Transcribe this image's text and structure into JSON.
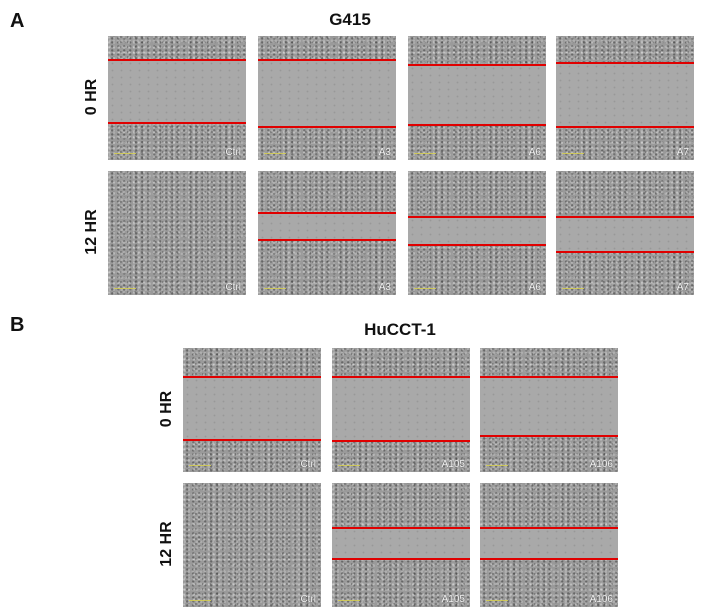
{
  "panel_a": {
    "letter": "A",
    "title": "G415",
    "rows": [
      {
        "label": "0 HR",
        "tiles": [
          {
            "label": "Ctrl",
            "lines": [
              0.19,
              0.7
            ]
          },
          {
            "label": "A3",
            "lines": [
              0.19,
              0.73
            ]
          },
          {
            "label": "A6",
            "lines": [
              0.23,
              0.72
            ]
          },
          {
            "label": "A7",
            "lines": [
              0.22,
              0.73
            ]
          }
        ]
      },
      {
        "label": "12 HR",
        "tiles": [
          {
            "label": "Ctrl",
            "lines": []
          },
          {
            "label": "A3",
            "lines": [
              0.34,
              0.56
            ]
          },
          {
            "label": "A6",
            "lines": [
              0.37,
              0.6
            ]
          },
          {
            "label": "A7",
            "lines": [
              0.37,
              0.65
            ]
          }
        ]
      }
    ]
  },
  "panel_b": {
    "letter": "B",
    "title": "HuCCT-1",
    "rows": [
      {
        "label": "0 HR",
        "tiles": [
          {
            "label": "Ctrl",
            "lines": [
              0.23,
              0.74
            ]
          },
          {
            "label": "A105",
            "lines": [
              0.23,
              0.75
            ]
          },
          {
            "label": "A106",
            "lines": [
              0.23,
              0.71
            ]
          }
        ]
      },
      {
        "label": "12 HR",
        "tiles": [
          {
            "label": "Ctrl",
            "lines": []
          },
          {
            "label": "A105",
            "lines": [
              0.36,
              0.61
            ]
          },
          {
            "label": "A106",
            "lines": [
              0.36,
              0.61
            ]
          }
        ]
      }
    ]
  },
  "colors": {
    "line": "#e00000",
    "background": "#ffffff"
  }
}
